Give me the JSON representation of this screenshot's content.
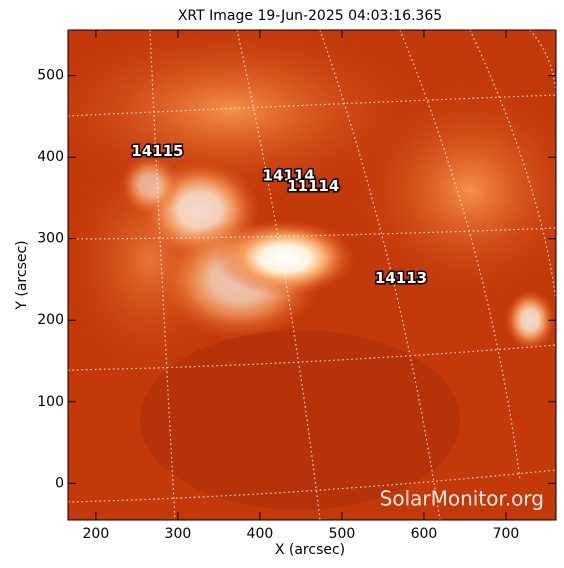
{
  "chart_data": {
    "type": "image",
    "title": "XRT Image 19-Jun-2025 04:03:16.365",
    "xlabel": "X (arcsec)",
    "ylabel": "Y (arcsec)",
    "xlim": [
      166,
      761
    ],
    "ylim": [
      -45,
      556
    ],
    "xticks": [
      200,
      300,
      400,
      500,
      600,
      700
    ],
    "yticks": [
      0,
      100,
      200,
      300,
      400,
      500
    ],
    "annotations": [
      {
        "text": "14115",
        "x": 275,
        "y": 407
      },
      {
        "text": "14114",
        "x": 435,
        "y": 377
      },
      {
        "text": "11114",
        "x": 465,
        "y": 364
      },
      {
        "text": "14113",
        "x": 572,
        "y": 251
      }
    ],
    "watermark": "SolarMonitor.org"
  }
}
